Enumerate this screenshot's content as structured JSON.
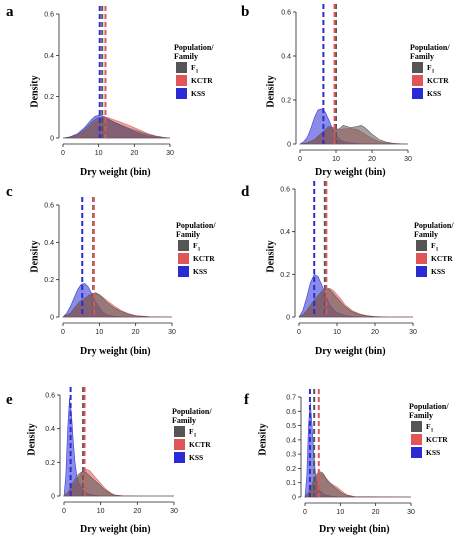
{
  "colors": {
    "F1": "#555555",
    "KCTR": "#e05555",
    "KSS": "#2b2bd6"
  },
  "legend": {
    "title": "Population/\nFamily",
    "entries": [
      {
        "key": "F1",
        "label": "F",
        "sub": "1"
      },
      {
        "key": "KCTR",
        "label": "KCTR"
      },
      {
        "key": "KSS",
        "label": "KSS"
      }
    ]
  },
  "chart_data": [
    {
      "panel": "a",
      "type": "area",
      "ylabel": "Density",
      "xlabel": "Dry weight (bin)",
      "xlim": [
        0,
        30
      ],
      "ylim": [
        0,
        0.6
      ],
      "xticks": [
        0,
        10,
        20,
        30
      ],
      "yticks": [
        0,
        0.2,
        0.4,
        0.6
      ],
      "yticklabels": [
        "0",
        "0.2",
        "0.4",
        "0.6"
      ],
      "series": [
        {
          "name": "F1",
          "mean": 11.0,
          "x": [
            0,
            2,
            4,
            6,
            8,
            9,
            10,
            11,
            12,
            13,
            14,
            16,
            18,
            20,
            22,
            24,
            26,
            28,
            30
          ],
          "y": [
            0,
            0.004,
            0.015,
            0.04,
            0.075,
            0.09,
            0.098,
            0.1,
            0.095,
            0.085,
            0.08,
            0.065,
            0.05,
            0.038,
            0.027,
            0.016,
            0.008,
            0.003,
            0
          ]
        },
        {
          "name": "KCTR",
          "mean": 11.9,
          "x": [
            0,
            2,
            4,
            6,
            8,
            10,
            11,
            12,
            13,
            14,
            16,
            18,
            20,
            22,
            24,
            26,
            28,
            30
          ],
          "y": [
            0,
            0.003,
            0.01,
            0.03,
            0.06,
            0.085,
            0.095,
            0.1,
            0.097,
            0.09,
            0.078,
            0.065,
            0.05,
            0.035,
            0.02,
            0.01,
            0.004,
            0
          ]
        },
        {
          "name": "KSS",
          "mean": 10.3,
          "x": [
            0,
            2,
            4,
            6,
            8,
            9,
            10,
            11,
            12,
            13,
            14,
            16,
            18,
            20,
            22,
            24,
            26,
            28,
            30
          ],
          "y": [
            0,
            0.006,
            0.02,
            0.05,
            0.09,
            0.105,
            0.11,
            0.108,
            0.1,
            0.09,
            0.08,
            0.062,
            0.045,
            0.03,
            0.018,
            0.008,
            0.003,
            0.001,
            0
          ]
        }
      ]
    },
    {
      "panel": "b",
      "type": "area",
      "ylabel": "Density",
      "xlabel": "Dry weight (bin)",
      "xlim": [
        0,
        30
      ],
      "ylim": [
        0,
        0.6
      ],
      "xticks": [
        0,
        10,
        20,
        30
      ],
      "yticks": [
        0,
        0.2,
        0.4,
        0.6
      ],
      "yticklabels": [
        "0",
        "0.2",
        "0.4",
        "0.6"
      ],
      "series": [
        {
          "name": "F1",
          "mean": 10.0,
          "x": [
            0,
            2,
            4,
            6,
            8,
            9,
            10,
            11,
            12,
            14,
            16,
            17,
            18,
            20,
            22,
            24,
            26,
            28,
            30
          ],
          "y": [
            0,
            0.005,
            0.02,
            0.05,
            0.08,
            0.075,
            0.065,
            0.07,
            0.085,
            0.075,
            0.08,
            0.085,
            0.075,
            0.045,
            0.02,
            0.008,
            0.003,
            0.001,
            0
          ]
        },
        {
          "name": "KCTR",
          "mean": 9.6,
          "x": [
            0,
            2,
            4,
            6,
            8,
            9,
            10,
            11,
            12,
            14,
            16,
            18,
            20,
            22,
            24,
            26,
            28,
            30
          ],
          "y": [
            0,
            0.006,
            0.02,
            0.045,
            0.07,
            0.075,
            0.07,
            0.065,
            0.068,
            0.07,
            0.065,
            0.045,
            0.025,
            0.01,
            0.004,
            0.001,
            0,
            0
          ]
        },
        {
          "name": "KSS",
          "mean": 6.5,
          "x": [
            0,
            1,
            2,
            3,
            4,
            5,
            6,
            7,
            8,
            9,
            10,
            11,
            12,
            14,
            16,
            18,
            20,
            24,
            30
          ],
          "y": [
            0,
            0.01,
            0.03,
            0.07,
            0.12,
            0.155,
            0.16,
            0.145,
            0.11,
            0.07,
            0.04,
            0.02,
            0.012,
            0.005,
            0.002,
            0.001,
            0,
            0,
            0
          ]
        }
      ]
    },
    {
      "panel": "c",
      "type": "area",
      "ylabel": "Density",
      "xlabel": "Dry weight (bin)",
      "xlim": [
        0,
        30
      ],
      "ylim": [
        0,
        0.6
      ],
      "xticks": [
        0,
        10,
        20,
        30
      ],
      "yticks": [
        0,
        0.2,
        0.4,
        0.6
      ],
      "yticklabels": [
        "0",
        "0.2",
        "0.4",
        "0.6"
      ],
      "series": [
        {
          "name": "F1",
          "mean": 8.3,
          "x": [
            0,
            2,
            3,
            4,
            5,
            6,
            7,
            8,
            9,
            10,
            11,
            12,
            14,
            16,
            18,
            20,
            24,
            30
          ],
          "y": [
            0,
            0.02,
            0.045,
            0.07,
            0.09,
            0.1,
            0.115,
            0.125,
            0.13,
            0.12,
            0.1,
            0.08,
            0.05,
            0.03,
            0.015,
            0.006,
            0.001,
            0
          ]
        },
        {
          "name": "KCTR",
          "mean": 8.5,
          "x": [
            0,
            2,
            3,
            4,
            5,
            6,
            7,
            8,
            9,
            10,
            11,
            12,
            14,
            16,
            18,
            20,
            24,
            30
          ],
          "y": [
            0,
            0.015,
            0.035,
            0.055,
            0.075,
            0.09,
            0.105,
            0.12,
            0.125,
            0.12,
            0.105,
            0.09,
            0.06,
            0.035,
            0.018,
            0.008,
            0.001,
            0
          ]
        },
        {
          "name": "KSS",
          "mean": 5.3,
          "x": [
            0,
            1,
            2,
            3,
            4,
            5,
            6,
            7,
            8,
            9,
            10,
            11,
            12,
            14,
            16,
            20,
            30
          ],
          "y": [
            0,
            0.02,
            0.055,
            0.1,
            0.145,
            0.175,
            0.18,
            0.16,
            0.12,
            0.08,
            0.05,
            0.025,
            0.012,
            0.004,
            0.001,
            0,
            0
          ]
        }
      ]
    },
    {
      "panel": "d",
      "type": "area",
      "ylabel": "Density",
      "xlabel": "Dry weight (bin)",
      "xlim": [
        0,
        30
      ],
      "ylim": [
        0,
        0.6
      ],
      "xticks": [
        0,
        10,
        20,
        30
      ],
      "yticks": [
        0,
        0.2,
        0.4,
        0.6
      ],
      "yticklabels": [
        "0",
        "0.2",
        "0.4",
        "0.6"
      ],
      "series": [
        {
          "name": "F1",
          "mean": 6.8,
          "x": [
            0,
            1,
            2,
            3,
            4,
            5,
            6,
            7,
            8,
            9,
            10,
            11,
            12,
            14,
            16,
            18,
            20,
            24,
            30
          ],
          "y": [
            0,
            0.01,
            0.03,
            0.055,
            0.08,
            0.1,
            0.12,
            0.135,
            0.13,
            0.11,
            0.09,
            0.07,
            0.05,
            0.025,
            0.012,
            0.005,
            0.002,
            0,
            0
          ]
        },
        {
          "name": "KCTR",
          "mean": 7.2,
          "x": [
            0,
            1,
            2,
            3,
            4,
            5,
            6,
            7,
            8,
            9,
            10,
            11,
            12,
            14,
            16,
            18,
            20,
            24,
            30
          ],
          "y": [
            0,
            0.008,
            0.025,
            0.045,
            0.07,
            0.09,
            0.11,
            0.13,
            0.135,
            0.125,
            0.105,
            0.085,
            0.06,
            0.03,
            0.014,
            0.006,
            0.002,
            0,
            0
          ]
        },
        {
          "name": "KSS",
          "mean": 4.0,
          "x": [
            0,
            1,
            2,
            3,
            4,
            5,
            6,
            7,
            8,
            9,
            10,
            12,
            14,
            16,
            20,
            30
          ],
          "y": [
            0,
            0.03,
            0.09,
            0.16,
            0.2,
            0.19,
            0.15,
            0.1,
            0.06,
            0.035,
            0.02,
            0.008,
            0.003,
            0.001,
            0,
            0
          ]
        }
      ]
    },
    {
      "panel": "e",
      "type": "area",
      "ylabel": "Density",
      "xlabel": "Dry weight (bin)",
      "xlim": [
        0,
        30
      ],
      "ylim": [
        0,
        0.6
      ],
      "xticks": [
        0,
        10,
        20,
        30
      ],
      "yticks": [
        0,
        0.2,
        0.4,
        0.6
      ],
      "yticklabels": [
        "0",
        "0.2",
        "0.4",
        "0.6"
      ],
      "series": [
        {
          "name": "F1",
          "mean": 5.2,
          "x": [
            0,
            1,
            2,
            3,
            4,
            5,
            6,
            7,
            8,
            9,
            10,
            11,
            12,
            13,
            14,
            16,
            20,
            30
          ],
          "y": [
            0,
            0.02,
            0.06,
            0.1,
            0.13,
            0.145,
            0.14,
            0.12,
            0.1,
            0.08,
            0.06,
            0.04,
            0.025,
            0.012,
            0.005,
            0.001,
            0,
            0
          ]
        },
        {
          "name": "KCTR",
          "mean": 5.6,
          "x": [
            0,
            1,
            2,
            3,
            4,
            5,
            6,
            7,
            8,
            9,
            10,
            11,
            12,
            13,
            14,
            16,
            20,
            30
          ],
          "y": [
            0,
            0.015,
            0.04,
            0.075,
            0.11,
            0.145,
            0.16,
            0.15,
            0.125,
            0.1,
            0.075,
            0.05,
            0.03,
            0.015,
            0.006,
            0.001,
            0,
            0
          ]
        },
        {
          "name": "KSS",
          "mean": 1.8,
          "x": [
            0,
            0.5,
            1,
            1.5,
            2,
            2.5,
            3,
            3.5,
            4,
            5,
            6,
            7,
            8,
            10,
            12,
            30
          ],
          "y": [
            0,
            0.12,
            0.4,
            0.58,
            0.5,
            0.33,
            0.2,
            0.12,
            0.08,
            0.04,
            0.02,
            0.01,
            0.005,
            0.001,
            0,
            0
          ]
        }
      ]
    },
    {
      "panel": "f",
      "type": "area",
      "ylabel": "Density",
      "xlabel": "Dry weight (bin)",
      "xlim": [
        0,
        30
      ],
      "ylim": [
        0,
        0.7
      ],
      "xticks": [
        0,
        10,
        20,
        30
      ],
      "yticks": [
        0,
        0.1,
        0.2,
        0.3,
        0.4,
        0.5,
        0.6,
        0.7
      ],
      "yticklabels": [
        "0",
        "0.1",
        "0.2",
        "0.3",
        "0.4",
        "0.5",
        "0.6",
        "0.7"
      ],
      "series": [
        {
          "name": "F1",
          "mean": 2.6,
          "x": [
            0,
            1,
            2,
            3,
            4,
            5,
            6,
            7,
            8,
            9,
            10,
            11,
            12,
            14,
            30
          ],
          "y": [
            0,
            0.03,
            0.09,
            0.15,
            0.18,
            0.17,
            0.13,
            0.1,
            0.075,
            0.055,
            0.035,
            0.02,
            0.01,
            0.002,
            0
          ]
        },
        {
          "name": "KCTR",
          "mean": 3.9,
          "x": [
            0,
            1,
            2,
            3,
            4,
            5,
            6,
            7,
            8,
            9,
            10,
            11,
            12,
            14,
            30
          ],
          "y": [
            0,
            0.02,
            0.07,
            0.13,
            0.165,
            0.16,
            0.13,
            0.1,
            0.085,
            0.07,
            0.05,
            0.03,
            0.015,
            0.003,
            0
          ]
        },
        {
          "name": "KSS",
          "mean": 1.4,
          "x": [
            0,
            0.5,
            1,
            1.5,
            2,
            2.5,
            3,
            3.5,
            4,
            5,
            6,
            8,
            10,
            30
          ],
          "y": [
            0,
            0.15,
            0.5,
            0.66,
            0.5,
            0.3,
            0.15,
            0.08,
            0.05,
            0.025,
            0.012,
            0.004,
            0.001,
            0
          ]
        }
      ]
    }
  ]
}
